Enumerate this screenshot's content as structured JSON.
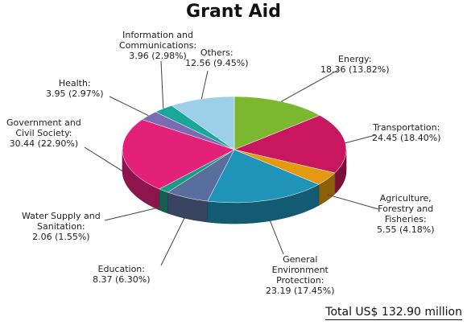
{
  "chart_data": {
    "type": "pie",
    "title": "Grant Aid",
    "total_label": "Total US$ 132.90 million",
    "slices": [
      {
        "key": "energy",
        "label_lines": [
          "Energy:",
          "18.36 (13.82%)"
        ],
        "value": 18.36,
        "percent": 13.82,
        "color": "#7cb82f"
      },
      {
        "key": "transportation",
        "label_lines": [
          "Transportation:",
          "24.45 (18.40%)"
        ],
        "value": 24.45,
        "percent": 18.4,
        "color": "#c8175f"
      },
      {
        "key": "agriculture",
        "label_lines": [
          "Agriculture,",
          "Forestry and",
          "Fisheries:",
          "5.55 (4.18%)"
        ],
        "value": 5.55,
        "percent": 4.18,
        "color": "#e39a10"
      },
      {
        "key": "environment",
        "label_lines": [
          "General",
          "Environment",
          "Protection:",
          "23.19 (17.45%)"
        ],
        "value": 23.19,
        "percent": 17.45,
        "color": "#1f93b8"
      },
      {
        "key": "education",
        "label_lines": [
          "Education:",
          "8.37 (6.30%)"
        ],
        "value": 8.37,
        "percent": 6.3,
        "color": "#5a6e9e"
      },
      {
        "key": "water",
        "label_lines": [
          "Water Supply and",
          "Sanitation:",
          "2.06 (1.55%)"
        ],
        "value": 2.06,
        "percent": 1.55,
        "color": "#1b9b86"
      },
      {
        "key": "government",
        "label_lines": [
          "Government and",
          "Civil Society:",
          "30.44 (22.90%)"
        ],
        "value": 30.44,
        "percent": 22.9,
        "color": "#e3207a"
      },
      {
        "key": "health",
        "label_lines": [
          "Health:",
          "3.95  (2.97%)"
        ],
        "value": 3.95,
        "percent": 2.97,
        "color": "#7b6bb0"
      },
      {
        "key": "ict",
        "label_lines": [
          "Information and",
          "Communications:",
          "3.96 (2.98%)"
        ],
        "value": 3.96,
        "percent": 2.98,
        "color": "#1aa79a"
      },
      {
        "key": "others",
        "label_lines": [
          "Others:",
          "12.56 (9.45%)"
        ],
        "value": 12.56,
        "percent": 9.45,
        "color": "#9dcfe8"
      }
    ]
  }
}
